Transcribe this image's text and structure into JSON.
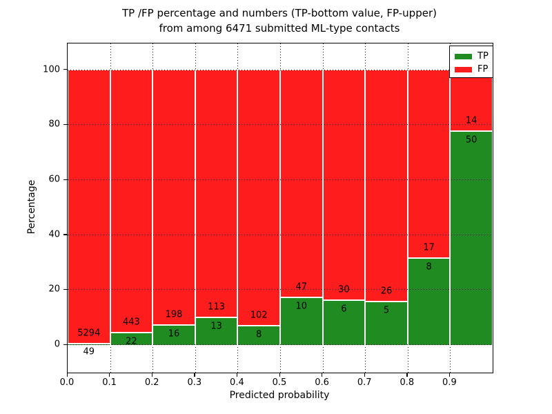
{
  "chart_data": {
    "type": "bar",
    "stacked": true,
    "normalized_to_100": true,
    "title": "TP /FP percentage and numbers (TP-bottom value, FP-upper)",
    "subtitle": "from among 6471 submitted ML-type contacts",
    "xlabel": "Predicted probability",
    "ylabel": "Percentage",
    "x_tick_labels": [
      "0.0",
      "0.1",
      "0.2",
      "0.3",
      "0.4",
      "0.5",
      "0.6",
      "0.7",
      "0.8",
      "0.9"
    ],
    "y_ticks": [
      0,
      20,
      40,
      60,
      80,
      100
    ],
    "xlim": [
      0.0,
      1.0
    ],
    "ylim": [
      -10,
      109.7
    ],
    "grid": "dotted",
    "bin_width": 0.1,
    "categories": [
      "0.0-0.1",
      "0.1-0.2",
      "0.2-0.3",
      "0.3-0.4",
      "0.4-0.5",
      "0.5-0.6",
      "0.6-0.7",
      "0.7-0.8",
      "0.8-0.9",
      "0.9-1.0"
    ],
    "series": [
      {
        "name": "TP",
        "counts": [
          49,
          22,
          16,
          13,
          8,
          10,
          6,
          5,
          8,
          50
        ],
        "color": "#208b20"
      },
      {
        "name": "FP",
        "counts": [
          5294,
          443,
          198,
          113,
          102,
          47,
          30,
          26,
          17,
          14
        ],
        "color": "#fd1d1d"
      }
    ],
    "tp_percent": [
      0.92,
      4.73,
      7.48,
      10.32,
      7.27,
      17.54,
      16.67,
      16.13,
      32.0,
      78.13
    ],
    "total_contacts": 6471,
    "legend": {
      "position": "upper right",
      "entries": [
        {
          "label": "TP",
          "color": "#208b20"
        },
        {
          "label": "FP",
          "color": "#fd1d1d"
        }
      ]
    }
  }
}
